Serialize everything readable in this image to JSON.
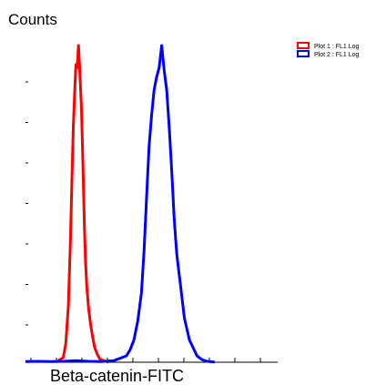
{
  "chart_data": {
    "type": "line",
    "ylabel": "Counts",
    "xlabel": "Beta-catenin-FITC",
    "xlim": [
      0,
      100
    ],
    "ylim": [
      0,
      100
    ],
    "grid": false,
    "legend_placement": "top-right",
    "series": [
      {
        "name": "Plot 1 : FL1 Log",
        "color": "#ff0000",
        "x": [
          13.0,
          15.0,
          16.0,
          17.0,
          17.8,
          18.5,
          19.0,
          19.5,
          20.0,
          20.5,
          21.0,
          21.4,
          21.8,
          22.2,
          22.6,
          23.0,
          23.4,
          23.8,
          24.3,
          25.0,
          25.8,
          26.6,
          27.5,
          28.5,
          29.5,
          31.0,
          33.0
        ],
        "y": [
          0.5,
          1.5,
          6.0,
          18.0,
          38.0,
          60.0,
          75.0,
          85.0,
          94.0,
          93.0,
          100.0,
          94.0,
          87.0,
          80.0,
          68.0,
          55.0,
          42.0,
          32.0,
          24.0,
          17.0,
          12.0,
          8.0,
          4.5,
          2.5,
          1.0,
          0.5,
          0.0
        ]
      },
      {
        "name": "Plot 2 : FL1 Log",
        "color": "#0000ff",
        "x": [
          0.0,
          5.0,
          10.0,
          15.0,
          20.0,
          25.0,
          30.0,
          35.0,
          40.0,
          41.5,
          43.0,
          44.5,
          46.0,
          47.0,
          48.0,
          49.0,
          50.0,
          51.0,
          52.0,
          53.0,
          54.0,
          55.0,
          56.0,
          57.0,
          58.0,
          59.0,
          60.0,
          61.5,
          63.0,
          65.0,
          68.0,
          70.0,
          72.0,
          75.0
        ],
        "y": [
          0.2,
          0.3,
          0.2,
          0.3,
          0.5,
          0.3,
          0.2,
          0.5,
          2.0,
          4.0,
          7.0,
          13.0,
          22.0,
          35.0,
          52.0,
          68.0,
          78.0,
          86.0,
          90.0,
          93.0,
          100.0,
          92.0,
          86.0,
          74.0,
          60.0,
          45.0,
          34.0,
          24.0,
          14.0,
          7.0,
          2.0,
          0.8,
          0.3,
          0.1
        ]
      }
    ]
  }
}
